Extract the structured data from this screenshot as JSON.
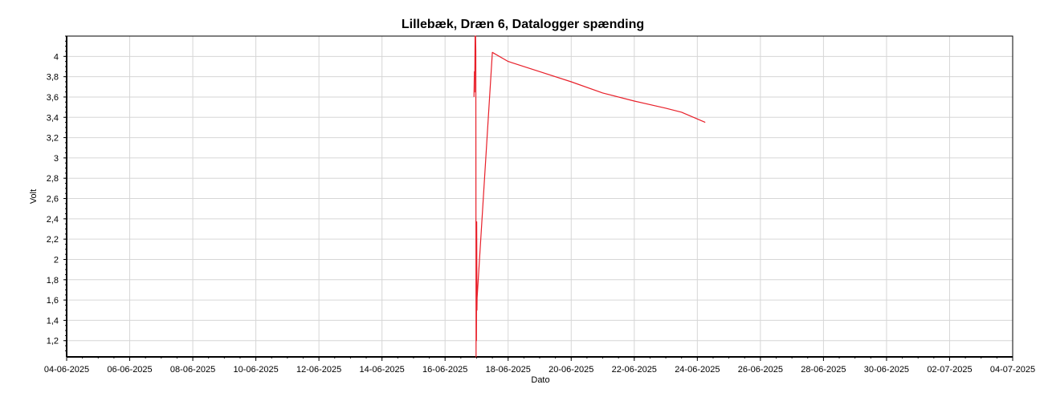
{
  "chart_data": {
    "type": "line",
    "title": "Lillebæk, Dræn 6, Datalogger spænding",
    "xlabel": "Dato",
    "ylabel": "Volt",
    "grid": true,
    "xlim": [
      "2025-06-04T00:00",
      "2025-07-04T00:00"
    ],
    "ylim": [
      1.04,
      4.2
    ],
    "x_ticks": [
      "04-06-2025",
      "06-06-2025",
      "08-06-2025",
      "10-06-2025",
      "12-06-2025",
      "14-06-2025",
      "16-06-2025",
      "18-06-2025",
      "20-06-2025",
      "22-06-2025",
      "24-06-2025",
      "26-06-2025",
      "28-06-2025",
      "30-06-2025",
      "02-07-2025",
      "04-07-2025"
    ],
    "y_ticks": [
      "1,2",
      "1,4",
      "1,6",
      "1,8",
      "2",
      "2,2",
      "2,4",
      "2,6",
      "2,8",
      "3",
      "3,2",
      "3,4",
      "3,6",
      "3,8",
      "4"
    ],
    "series": [
      {
        "color": "#e8202a",
        "points": [
          {
            "x": "2025-06-16T22:00",
            "y": 3.6
          },
          {
            "x": "2025-06-16T22:20",
            "y": 3.85
          },
          {
            "x": "2025-06-16T22:35",
            "y": 3.65
          },
          {
            "x": "2025-06-16T22:50",
            "y": 4.2
          },
          {
            "x": "2025-06-16T23:05",
            "y": 4.08
          },
          {
            "x": "2025-06-16T23:15",
            "y": 4.2
          },
          {
            "x": "2025-06-16T23:25",
            "y": 4.05
          },
          {
            "x": "2025-06-16T23:35",
            "y": 1.04
          },
          {
            "x": "2025-06-16T23:45",
            "y": 2.25
          },
          {
            "x": "2025-06-16T23:55",
            "y": 1.2
          },
          {
            "x": "2025-06-17T00:05",
            "y": 2.37
          },
          {
            "x": "2025-06-17T00:15",
            "y": 1.5
          },
          {
            "x": "2025-06-17T00:25",
            "y": 1.62
          },
          {
            "x": "2025-06-17T12:00",
            "y": 4.04
          },
          {
            "x": "2025-06-18T00:00",
            "y": 3.95
          },
          {
            "x": "2025-06-19T00:00",
            "y": 3.85
          },
          {
            "x": "2025-06-20T00:00",
            "y": 3.75
          },
          {
            "x": "2025-06-21T00:00",
            "y": 3.64
          },
          {
            "x": "2025-06-22T00:00",
            "y": 3.56
          },
          {
            "x": "2025-06-23T00:00",
            "y": 3.49
          },
          {
            "x": "2025-06-23T12:00",
            "y": 3.45
          },
          {
            "x": "2025-06-24T06:00",
            "y": 3.35
          }
        ]
      }
    ]
  }
}
